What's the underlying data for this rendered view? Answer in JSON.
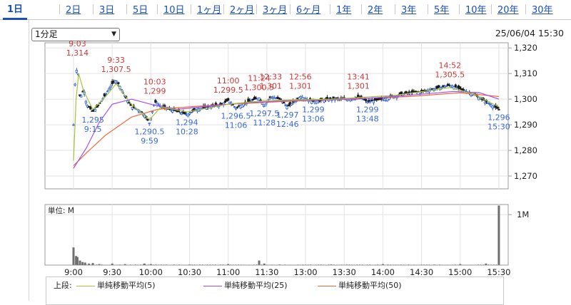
{
  "tabs": [
    "1日",
    "2日",
    "3日",
    "5日",
    "10日",
    "1ヶ月",
    "2ヶ月",
    "3ヶ月",
    "6ヶ月",
    "1年",
    "2年",
    "3年",
    "5年",
    "10年",
    "20年",
    "30年"
  ],
  "active_tab": 0,
  "interval_select": {
    "label": "1分足"
  },
  "datetime": "25/06/04 15:30",
  "volume_unit": "単位: M",
  "legend": {
    "title": "上段:",
    "items": [
      {
        "label": "単純移動平均(5)",
        "color": "#a8c23a"
      },
      {
        "label": "単純移動平均(25)",
        "color": "#a24ff0"
      },
      {
        "label": "単純移動平均(50)",
        "color": "#f06a3a"
      }
    ]
  },
  "chart_data": {
    "type": "candlestick",
    "price_axis": {
      "min": 1265,
      "max": 1322,
      "ticks": [
        "1,320",
        "1,310",
        "1,300",
        "1,290",
        "1,280",
        "1,270"
      ],
      "tick_values": [
        1320,
        1310,
        1300,
        1290,
        1280,
        1270
      ]
    },
    "volume_axis": {
      "max": 1.2,
      "ticks": [
        "1M"
      ],
      "tick_values": [
        1.0
      ]
    },
    "x_ticks": [
      "9:00",
      "9:30",
      "10:00",
      "10:30",
      "11:00",
      "11:30",
      "13:00",
      "13:30",
      "14:00",
      "14:30",
      "15:00",
      "15:30"
    ],
    "high_labels": [
      {
        "time": "9:03",
        "price": "1,314",
        "t": 3,
        "v": 1314
      },
      {
        "time": "9:33",
        "price": "1,307.5",
        "t": 33,
        "v": 1307.5
      },
      {
        "time": "10:03",
        "price": "1,299",
        "t": 63,
        "v": 1299
      },
      {
        "time": "11:00",
        "price": "1,299.5",
        "t": 120,
        "v": 1299.5
      },
      {
        "time": "11:24",
        "price": "1,300.5",
        "t": 144,
        "v": 1300.5
      },
      {
        "time": "12:33",
        "price": "1,301",
        "t": 153,
        "v": 1301
      },
      {
        "time": "12:56",
        "price": "1,301",
        "t": 176,
        "v": 1301
      },
      {
        "time": "13:41",
        "price": "1,301",
        "t": 221,
        "v": 1301
      },
      {
        "time": "14:52",
        "price": "1,305.5",
        "t": 292,
        "v": 1305.5
      }
    ],
    "low_labels": [
      {
        "time": "9:15",
        "price": "1,295",
        "t": 15,
        "v": 1295
      },
      {
        "time": "9:59",
        "price": "1,290.5",
        "t": 59,
        "v": 1290.5
      },
      {
        "time": "10:28",
        "price": "1,294",
        "t": 88,
        "v": 1294
      },
      {
        "time": "11:06",
        "price": "1,296.5",
        "t": 126,
        "v": 1296.5
      },
      {
        "time": "11:28",
        "price": "1,297.5",
        "t": 148,
        "v": 1297.5
      },
      {
        "time": "12:46",
        "price": "1,297",
        "t": 166,
        "v": 1297
      },
      {
        "time": "13:06",
        "price": "1,299",
        "t": 186,
        "v": 1299
      },
      {
        "time": "13:48",
        "price": "1,299",
        "t": 228,
        "v": 1299
      },
      {
        "time": "15:30",
        "price": "1,296",
        "t": 330,
        "v": 1296
      }
    ],
    "price_path": [
      [
        0,
        1290
      ],
      [
        1,
        1305
      ],
      [
        3,
        1314
      ],
      [
        5,
        1300
      ],
      [
        8,
        1304
      ],
      [
        10,
        1298
      ],
      [
        15,
        1295
      ],
      [
        20,
        1298
      ],
      [
        25,
        1302
      ],
      [
        30,
        1306
      ],
      [
        33,
        1307.5
      ],
      [
        36,
        1305
      ],
      [
        40,
        1301
      ],
      [
        45,
        1297
      ],
      [
        50,
        1296
      ],
      [
        55,
        1294
      ],
      [
        59,
        1290.5
      ],
      [
        63,
        1299
      ],
      [
        68,
        1297
      ],
      [
        75,
        1296
      ],
      [
        82,
        1295
      ],
      [
        88,
        1294
      ],
      [
        95,
        1296
      ],
      [
        105,
        1297
      ],
      [
        115,
        1298
      ],
      [
        120,
        1299.5
      ],
      [
        126,
        1296.5
      ],
      [
        135,
        1299
      ],
      [
        144,
        1300.5
      ],
      [
        148,
        1297.5
      ],
      [
        153,
        1301
      ],
      [
        160,
        1300
      ],
      [
        166,
        1297
      ],
      [
        176,
        1301
      ],
      [
        186,
        1299
      ],
      [
        200,
        1300
      ],
      [
        215,
        1300
      ],
      [
        221,
        1301
      ],
      [
        228,
        1299
      ],
      [
        240,
        1300
      ],
      [
        255,
        1302
      ],
      [
        270,
        1303
      ],
      [
        280,
        1304
      ],
      [
        292,
        1305.5
      ],
      [
        300,
        1304
      ],
      [
        310,
        1302
      ],
      [
        320,
        1299
      ],
      [
        330,
        1296
      ]
    ],
    "sma5": [
      [
        0,
        1276
      ],
      [
        2,
        1300
      ],
      [
        4,
        1310
      ],
      [
        8,
        1303
      ],
      [
        15,
        1296
      ],
      [
        25,
        1301
      ],
      [
        33,
        1306
      ],
      [
        45,
        1298
      ],
      [
        59,
        1292
      ],
      [
        68,
        1297
      ],
      [
        88,
        1295
      ],
      [
        120,
        1298
      ],
      [
        150,
        1299.5
      ],
      [
        200,
        1300
      ],
      [
        250,
        1301.5
      ],
      [
        292,
        1304.5
      ],
      [
        310,
        1302
      ],
      [
        330,
        1297
      ]
    ],
    "sma25": [
      [
        0,
        1273
      ],
      [
        10,
        1281
      ],
      [
        20,
        1291
      ],
      [
        30,
        1298
      ],
      [
        45,
        1300
      ],
      [
        60,
        1298
      ],
      [
        80,
        1296
      ],
      [
        100,
        1297
      ],
      [
        130,
        1298.5
      ],
      [
        170,
        1299.5
      ],
      [
        220,
        1300
      ],
      [
        260,
        1301.5
      ],
      [
        295,
        1303
      ],
      [
        315,
        1302.5
      ],
      [
        330,
        1300
      ]
    ],
    "sma50": [
      [
        0,
        1274
      ],
      [
        10,
        1279
      ],
      [
        25,
        1286
      ],
      [
        45,
        1293
      ],
      [
        65,
        1296
      ],
      [
        90,
        1297
      ],
      [
        120,
        1298
      ],
      [
        160,
        1299
      ],
      [
        210,
        1300
      ],
      [
        260,
        1301
      ],
      [
        300,
        1302.5
      ],
      [
        330,
        1301
      ]
    ],
    "volumes": [
      [
        0,
        0.35
      ],
      [
        2,
        0.18
      ],
      [
        3,
        0.16
      ],
      [
        5,
        0.09
      ],
      [
        7,
        0.06
      ],
      [
        9,
        0.05
      ],
      [
        12,
        0.03
      ],
      [
        15,
        0.04
      ],
      [
        20,
        0.02
      ],
      [
        30,
        0.03
      ],
      [
        40,
        0.02
      ],
      [
        55,
        0.03
      ],
      [
        60,
        0.02
      ],
      [
        90,
        0.01
      ],
      [
        120,
        0.02
      ],
      [
        144,
        0.09
      ],
      [
        148,
        0.03
      ],
      [
        160,
        0.01
      ],
      [
        200,
        0.01
      ],
      [
        240,
        0.02
      ],
      [
        280,
        0.01
      ],
      [
        300,
        0.02
      ],
      [
        320,
        0.03
      ],
      [
        330,
        1.18
      ]
    ]
  }
}
